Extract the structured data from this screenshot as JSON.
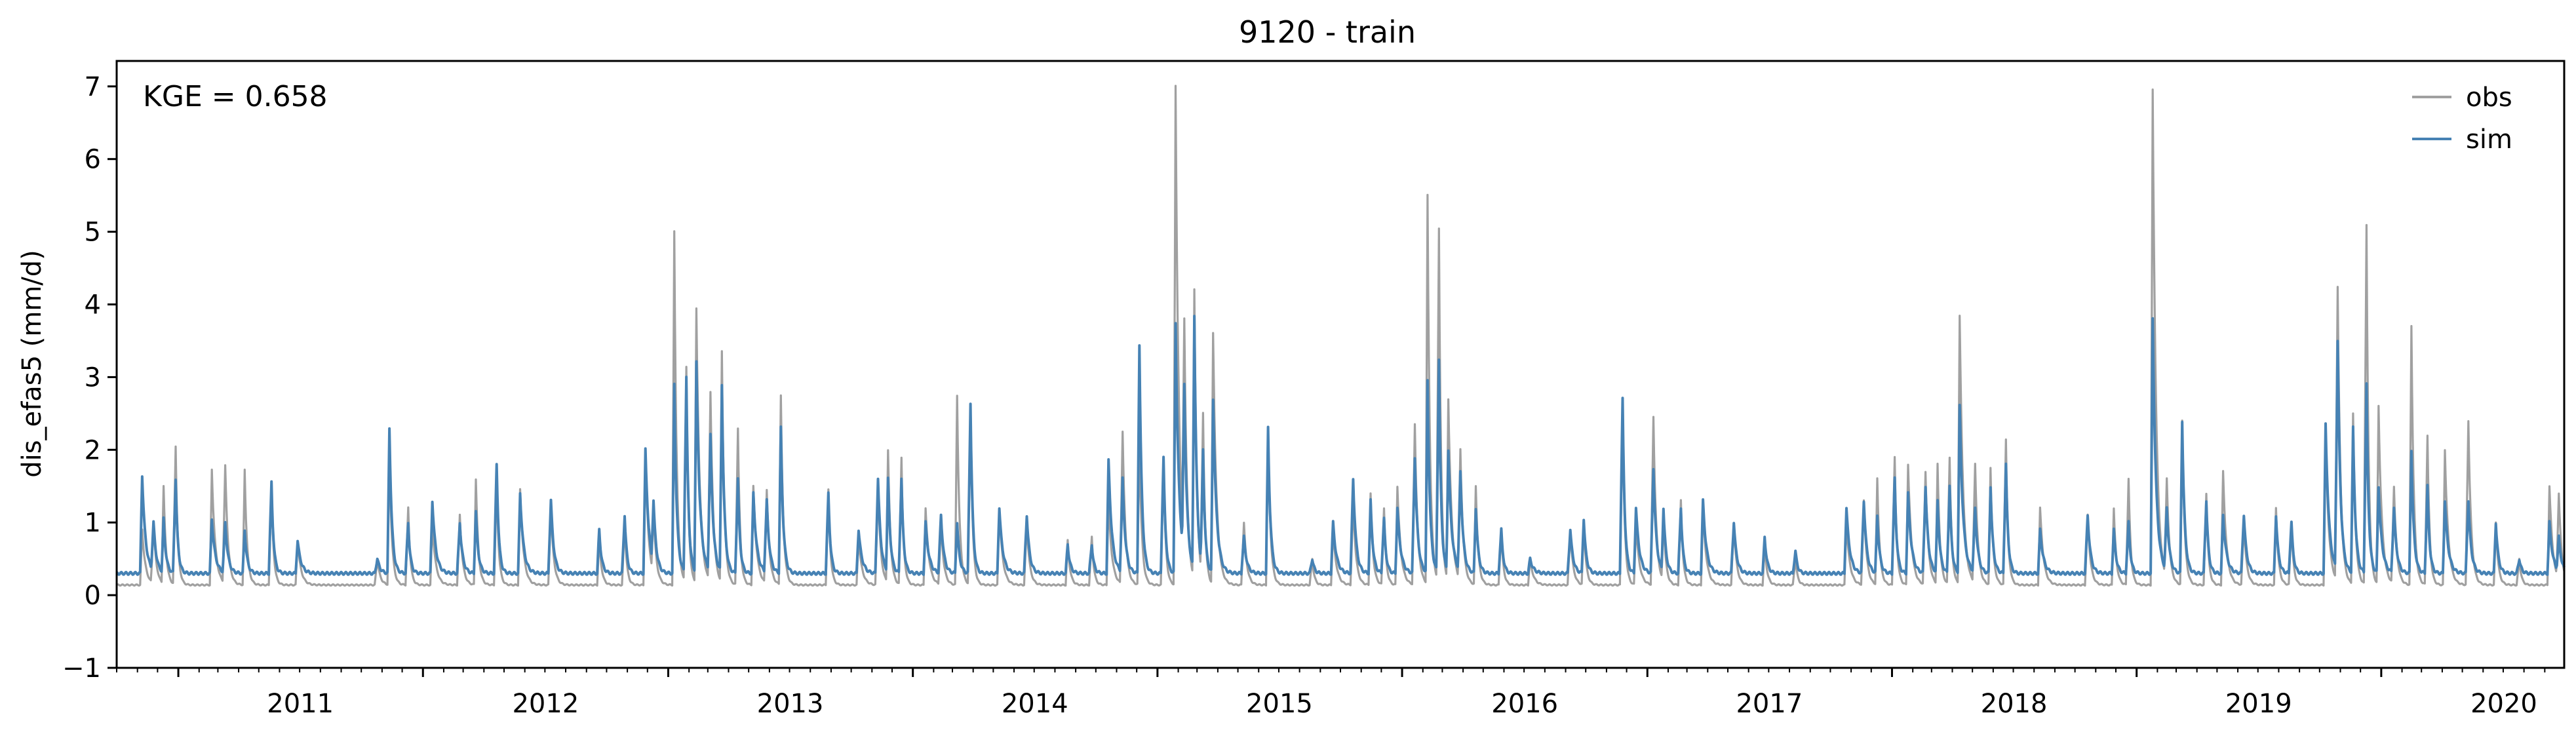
{
  "chart_data": {
    "type": "line",
    "title": "9120 - train",
    "xlabel": "",
    "ylabel": "dis_efas5 (mm/d)",
    "annotation": "KGE = 0.658",
    "xlim": [
      "2010-10-01",
      "2020-09-30"
    ],
    "ylim": [
      -1,
      7.35
    ],
    "y_ticks": [
      "−1",
      "0",
      "1",
      "2",
      "3",
      "4",
      "5",
      "6",
      "7"
    ],
    "x_ticks": [
      "2011",
      "2012",
      "2013",
      "2014",
      "2015",
      "2016",
      "2017",
      "2018",
      "2019",
      "2020"
    ],
    "grid": false,
    "legend_position": "top-right",
    "series": [
      {
        "name": "obs",
        "color": "#a0a0a0",
        "baseline": 0.14,
        "peaks": [
          [
            "2010-11-08",
            0.9
          ],
          [
            "2010-11-25",
            1.0
          ],
          [
            "2010-12-10",
            1.5
          ],
          [
            "2010-12-28",
            2.05
          ],
          [
            "2011-02-20",
            1.72
          ],
          [
            "2011-03-12",
            1.78
          ],
          [
            "2011-04-10",
            1.72
          ],
          [
            "2011-05-20",
            1.5
          ],
          [
            "2011-06-28",
            0.75
          ],
          [
            "2011-10-25",
            0.5
          ],
          [
            "2011-11-12",
            2.0
          ],
          [
            "2011-12-10",
            1.2
          ],
          [
            "2012-01-15",
            1.0
          ],
          [
            "2012-02-25",
            1.1
          ],
          [
            "2012-03-20",
            1.6
          ],
          [
            "2012-04-20",
            1.55
          ],
          [
            "2012-05-25",
            1.45
          ],
          [
            "2012-07-10",
            1.2
          ],
          [
            "2012-09-20",
            0.8
          ],
          [
            "2012-10-28",
            1.0
          ],
          [
            "2012-11-28",
            1.9
          ],
          [
            "2012-12-10",
            1.2
          ],
          [
            "2013-01-10",
            5.0
          ],
          [
            "2013-01-28",
            3.15
          ],
          [
            "2013-02-12",
            3.95
          ],
          [
            "2013-03-05",
            2.8
          ],
          [
            "2013-03-22",
            3.35
          ],
          [
            "2013-04-15",
            2.3
          ],
          [
            "2013-05-08",
            1.5
          ],
          [
            "2013-05-28",
            1.45
          ],
          [
            "2013-06-18",
            2.75
          ],
          [
            "2013-08-28",
            1.45
          ],
          [
            "2013-10-12",
            0.8
          ],
          [
            "2013-11-10",
            1.5
          ],
          [
            "2013-11-25",
            2.0
          ],
          [
            "2013-12-15",
            1.9
          ],
          [
            "2014-01-20",
            1.2
          ],
          [
            "2014-02-12",
            1.0
          ],
          [
            "2014-03-08",
            2.75
          ],
          [
            "2014-03-28",
            2.6
          ],
          [
            "2014-05-10",
            1.2
          ],
          [
            "2014-06-20",
            1.0
          ],
          [
            "2014-08-20",
            0.75
          ],
          [
            "2014-09-25",
            0.8
          ],
          [
            "2014-10-20",
            1.3
          ],
          [
            "2014-11-10",
            2.25
          ],
          [
            "2014-12-05",
            2.2
          ],
          [
            "2015-01-10",
            1.9
          ],
          [
            "2015-01-28",
            7.0
          ],
          [
            "2015-02-10",
            3.8
          ],
          [
            "2015-02-25",
            4.2
          ],
          [
            "2015-03-10",
            2.5
          ],
          [
            "2015-03-25",
            3.6
          ],
          [
            "2015-05-10",
            1.0
          ],
          [
            "2015-06-15",
            2.3
          ],
          [
            "2015-08-20",
            0.5
          ],
          [
            "2015-09-20",
            0.9
          ],
          [
            "2015-10-20",
            1.3
          ],
          [
            "2015-11-15",
            1.4
          ],
          [
            "2015-12-05",
            1.2
          ],
          [
            "2015-12-25",
            1.5
          ],
          [
            "2016-01-20",
            2.35
          ],
          [
            "2016-02-08",
            5.5
          ],
          [
            "2016-02-25",
            5.05
          ],
          [
            "2016-03-10",
            2.7
          ],
          [
            "2016-03-28",
            2.0
          ],
          [
            "2016-04-20",
            1.5
          ],
          [
            "2016-05-28",
            0.9
          ],
          [
            "2016-07-10",
            0.5
          ],
          [
            "2016-09-08",
            0.9
          ],
          [
            "2016-09-28",
            1.0
          ],
          [
            "2016-11-25",
            2.6
          ],
          [
            "2016-12-15",
            1.0
          ],
          [
            "2017-01-10",
            2.45
          ],
          [
            "2017-01-25",
            1.1
          ],
          [
            "2017-02-20",
            1.3
          ],
          [
            "2017-03-25",
            1.2
          ],
          [
            "2017-05-10",
            1.0
          ],
          [
            "2017-06-25",
            0.7
          ],
          [
            "2017-08-10",
            0.5
          ],
          [
            "2017-10-25",
            1.0
          ],
          [
            "2017-11-20",
            1.3
          ],
          [
            "2017-12-10",
            1.6
          ],
          [
            "2018-01-05",
            1.9
          ],
          [
            "2018-01-25",
            1.8
          ],
          [
            "2018-02-20",
            1.7
          ],
          [
            "2018-03-10",
            1.8
          ],
          [
            "2018-03-28",
            1.9
          ],
          [
            "2018-04-12",
            3.85
          ],
          [
            "2018-05-05",
            1.8
          ],
          [
            "2018-05-28",
            1.75
          ],
          [
            "2018-06-20",
            2.15
          ],
          [
            "2018-08-10",
            1.2
          ],
          [
            "2018-10-20",
            1.1
          ],
          [
            "2018-11-28",
            1.2
          ],
          [
            "2018-12-20",
            1.6
          ],
          [
            "2019-01-25",
            6.95
          ],
          [
            "2019-02-15",
            1.6
          ],
          [
            "2019-03-10",
            2.4
          ],
          [
            "2019-04-15",
            1.4
          ],
          [
            "2019-05-10",
            1.7
          ],
          [
            "2019-06-10",
            1.0
          ],
          [
            "2019-07-28",
            1.2
          ],
          [
            "2019-08-20",
            1.0
          ],
          [
            "2019-10-10",
            2.2
          ],
          [
            "2019-10-28",
            4.25
          ],
          [
            "2019-11-20",
            2.5
          ],
          [
            "2019-12-10",
            5.1
          ],
          [
            "2019-12-28",
            2.6
          ],
          [
            "2020-01-20",
            1.5
          ],
          [
            "2020-02-15",
            3.7
          ],
          [
            "2020-03-10",
            2.2
          ],
          [
            "2020-04-05",
            2.0
          ],
          [
            "2020-05-10",
            2.4
          ],
          [
            "2020-06-20",
            1.0
          ],
          [
            "2020-07-25",
            0.5
          ],
          [
            "2020-09-08",
            1.5
          ],
          [
            "2020-09-22",
            1.4
          ]
        ]
      },
      {
        "name": "sim",
        "color": "#4682b4",
        "baseline": 0.3,
        "peaks": [
          [
            "2010-11-08",
            1.65
          ],
          [
            "2010-11-25",
            1.0
          ],
          [
            "2010-12-10",
            1.05
          ],
          [
            "2010-12-28",
            1.6
          ],
          [
            "2011-02-20",
            1.05
          ],
          [
            "2011-03-12",
            1.0
          ],
          [
            "2011-04-10",
            0.9
          ],
          [
            "2011-05-20",
            1.55
          ],
          [
            "2011-06-28",
            0.75
          ],
          [
            "2011-10-25",
            0.5
          ],
          [
            "2011-11-12",
            2.3
          ],
          [
            "2011-12-10",
            1.0
          ],
          [
            "2012-01-15",
            1.3
          ],
          [
            "2012-02-25",
            1.0
          ],
          [
            "2012-03-20",
            1.15
          ],
          [
            "2012-04-20",
            1.8
          ],
          [
            "2012-05-25",
            1.4
          ],
          [
            "2012-07-10",
            1.3
          ],
          [
            "2012-09-20",
            0.9
          ],
          [
            "2012-10-28",
            1.1
          ],
          [
            "2012-11-28",
            2.0
          ],
          [
            "2012-12-10",
            1.3
          ],
          [
            "2013-01-10",
            2.9
          ],
          [
            "2013-01-28",
            3.0
          ],
          [
            "2013-02-12",
            3.2
          ],
          [
            "2013-03-05",
            2.2
          ],
          [
            "2013-03-22",
            2.9
          ],
          [
            "2013-04-15",
            1.6
          ],
          [
            "2013-05-08",
            1.4
          ],
          [
            "2013-05-28",
            1.3
          ],
          [
            "2013-06-18",
            2.3
          ],
          [
            "2013-08-28",
            1.4
          ],
          [
            "2013-10-12",
            0.9
          ],
          [
            "2013-11-10",
            1.6
          ],
          [
            "2013-11-25",
            1.6
          ],
          [
            "2013-12-15",
            1.6
          ],
          [
            "2014-01-20",
            1.0
          ],
          [
            "2014-02-12",
            1.1
          ],
          [
            "2014-03-08",
            1.0
          ],
          [
            "2014-03-28",
            2.65
          ],
          [
            "2014-05-10",
            1.2
          ],
          [
            "2014-06-20",
            1.1
          ],
          [
            "2014-08-20",
            0.7
          ],
          [
            "2014-09-25",
            0.7
          ],
          [
            "2014-10-20",
            1.85
          ],
          [
            "2014-11-10",
            1.6
          ],
          [
            "2014-12-05",
            3.45
          ],
          [
            "2015-01-10",
            1.9
          ],
          [
            "2015-01-28",
            3.75
          ],
          [
            "2015-02-10",
            2.9
          ],
          [
            "2015-02-25",
            3.85
          ],
          [
            "2015-03-10",
            2.0
          ],
          [
            "2015-03-25",
            2.7
          ],
          [
            "2015-05-10",
            0.8
          ],
          [
            "2015-06-15",
            2.3
          ],
          [
            "2015-08-20",
            0.5
          ],
          [
            "2015-09-20",
            1.0
          ],
          [
            "2015-10-20",
            1.6
          ],
          [
            "2015-11-15",
            1.3
          ],
          [
            "2015-12-05",
            1.05
          ],
          [
            "2015-12-25",
            1.2
          ],
          [
            "2016-01-20",
            1.9
          ],
          [
            "2016-02-08",
            2.95
          ],
          [
            "2016-02-25",
            3.25
          ],
          [
            "2016-03-10",
            2.0
          ],
          [
            "2016-03-28",
            1.7
          ],
          [
            "2016-04-20",
            1.2
          ],
          [
            "2016-05-28",
            0.9
          ],
          [
            "2016-07-10",
            0.5
          ],
          [
            "2016-09-08",
            0.9
          ],
          [
            "2016-09-28",
            1.05
          ],
          [
            "2016-11-25",
            2.7
          ],
          [
            "2016-12-15",
            1.2
          ],
          [
            "2017-01-10",
            1.75
          ],
          [
            "2017-01-25",
            1.2
          ],
          [
            "2017-02-20",
            1.2
          ],
          [
            "2017-03-25",
            1.3
          ],
          [
            "2017-05-10",
            1.0
          ],
          [
            "2017-06-25",
            0.8
          ],
          [
            "2017-08-10",
            0.6
          ],
          [
            "2017-10-25",
            1.2
          ],
          [
            "2017-11-20",
            1.3
          ],
          [
            "2017-12-10",
            1.1
          ],
          [
            "2018-01-05",
            1.6
          ],
          [
            "2018-01-25",
            1.4
          ],
          [
            "2018-02-20",
            1.5
          ],
          [
            "2018-03-10",
            1.3
          ],
          [
            "2018-03-28",
            1.5
          ],
          [
            "2018-04-12",
            2.6
          ],
          [
            "2018-05-05",
            1.2
          ],
          [
            "2018-05-28",
            1.5
          ],
          [
            "2018-06-20",
            1.8
          ],
          [
            "2018-08-10",
            0.9
          ],
          [
            "2018-10-20",
            1.1
          ],
          [
            "2018-11-28",
            0.9
          ],
          [
            "2018-12-20",
            1.0
          ],
          [
            "2019-01-25",
            3.8
          ],
          [
            "2019-02-15",
            1.2
          ],
          [
            "2019-03-10",
            2.4
          ],
          [
            "2019-04-15",
            1.3
          ],
          [
            "2019-05-10",
            1.1
          ],
          [
            "2019-06-10",
            1.1
          ],
          [
            "2019-07-28",
            1.1
          ],
          [
            "2019-08-20",
            1.0
          ],
          [
            "2019-10-10",
            2.35
          ],
          [
            "2019-10-28",
            3.5
          ],
          [
            "2019-11-20",
            2.3
          ],
          [
            "2019-12-10",
            2.9
          ],
          [
            "2019-12-28",
            1.5
          ],
          [
            "2020-01-20",
            1.2
          ],
          [
            "2020-02-15",
            2.0
          ],
          [
            "2020-03-10",
            1.5
          ],
          [
            "2020-04-05",
            1.3
          ],
          [
            "2020-05-10",
            1.3
          ],
          [
            "2020-06-20",
            1.0
          ],
          [
            "2020-07-25",
            0.5
          ],
          [
            "2020-09-08",
            1.0
          ],
          [
            "2020-09-22",
            0.8
          ]
        ]
      }
    ]
  }
}
